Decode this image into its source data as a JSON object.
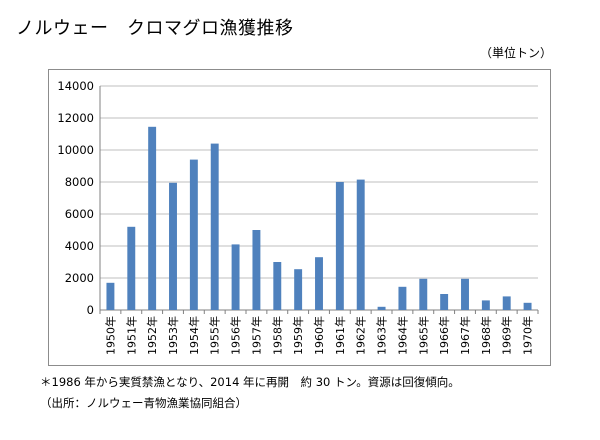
{
  "title": "ノルウェー　クロマグロ漁獲推移",
  "unit_label": "（単位トン）",
  "footnotes": [
    "＊1986 年から実質禁漁となり、2014 年に再開　約 30 トン。資源は回復傾向。",
    "（出所：ノルウェー青物漁業協同組合）"
  ],
  "colors": {
    "bar": "#4f81bd",
    "grid": "#bfbfbf",
    "axis": "#808080"
  },
  "chart_data": {
    "type": "bar",
    "title": "ノルウェー　クロマグロ漁獲推移",
    "xlabel": "",
    "ylabel": "（単位トン）",
    "ylim": [
      0,
      14000
    ],
    "yticks": [
      0,
      2000,
      4000,
      6000,
      8000,
      10000,
      12000,
      14000
    ],
    "grid": true,
    "categories": [
      "1950年",
      "1951年",
      "1952年",
      "1953年",
      "1954年",
      "1955年",
      "1956年",
      "1957年",
      "1958年",
      "1959年",
      "1960年",
      "1961年",
      "1962年",
      "1963年",
      "1964年",
      "1965年",
      "1966年",
      "1967年",
      "1968年",
      "1969年",
      "1970年"
    ],
    "values": [
      1700,
      5200,
      11450,
      7950,
      9400,
      10400,
      4100,
      5000,
      3000,
      2550,
      3300,
      8000,
      8150,
      200,
      1450,
      1950,
      1000,
      1950,
      600,
      850,
      450
    ]
  }
}
